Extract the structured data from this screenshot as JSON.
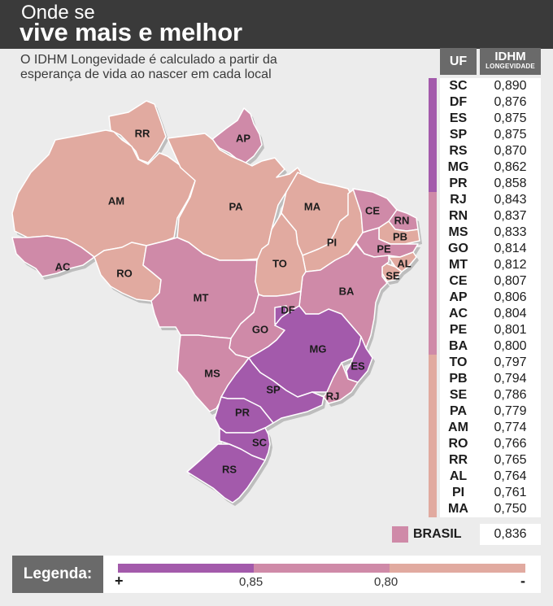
{
  "header": {
    "title_line1": "Onde se",
    "title_line2": "vive mais e melhor"
  },
  "subtitle": {
    "line1": "O IDHM Longevidade é calculado a partir da",
    "line2": "esperança de vida ao nascer em cada local"
  },
  "colors": {
    "high": "#a35aab",
    "mid": "#cf8aa8",
    "low": "#e1aaa0",
    "border": "#ffffff"
  },
  "table": {
    "header_uf": "UF",
    "header_idhm": "IDHM",
    "header_idhm_sub": "LONGEVIDADE",
    "rows": [
      {
        "uf": "SC",
        "value": "0,890",
        "tier": "high"
      },
      {
        "uf": "DF",
        "value": "0,876",
        "tier": "high"
      },
      {
        "uf": "ES",
        "value": "0,875",
        "tier": "high"
      },
      {
        "uf": "SP",
        "value": "0,875",
        "tier": "high"
      },
      {
        "uf": "RS",
        "value": "0,870",
        "tier": "high"
      },
      {
        "uf": "MG",
        "value": "0,862",
        "tier": "high"
      },
      {
        "uf": "PR",
        "value": "0,858",
        "tier": "high"
      },
      {
        "uf": "RJ",
        "value": "0,843",
        "tier": "mid"
      },
      {
        "uf": "RN",
        "value": "0,837",
        "tier": "mid"
      },
      {
        "uf": "MS",
        "value": "0,833",
        "tier": "mid"
      },
      {
        "uf": "GO",
        "value": "0,814",
        "tier": "mid"
      },
      {
        "uf": "MT",
        "value": "0,812",
        "tier": "mid"
      },
      {
        "uf": "CE",
        "value": "0,807",
        "tier": "mid"
      },
      {
        "uf": "AP",
        "value": "0,806",
        "tier": "mid"
      },
      {
        "uf": "AC",
        "value": "0,804",
        "tier": "mid"
      },
      {
        "uf": "PE",
        "value": "0,801",
        "tier": "mid"
      },
      {
        "uf": "BA",
        "value": "0,800",
        "tier": "mid"
      },
      {
        "uf": "TO",
        "value": "0,797",
        "tier": "low"
      },
      {
        "uf": "PB",
        "value": "0,794",
        "tier": "low"
      },
      {
        "uf": "SE",
        "value": "0,786",
        "tier": "low"
      },
      {
        "uf": "PA",
        "value": "0,779",
        "tier": "low"
      },
      {
        "uf": "AM",
        "value": "0,774",
        "tier": "low"
      },
      {
        "uf": "RO",
        "value": "0,766",
        "tier": "low"
      },
      {
        "uf": "RR",
        "value": "0,765",
        "tier": "low"
      },
      {
        "uf": "AL",
        "value": "0,764",
        "tier": "low"
      },
      {
        "uf": "PI",
        "value": "0,761",
        "tier": "low"
      },
      {
        "uf": "MA",
        "value": "0,750",
        "tier": "low"
      }
    ],
    "brasil_label": "BRASIL",
    "brasil_value": "0,836",
    "brasil_tier": "mid"
  },
  "legend": {
    "title": "Legenda:",
    "plus": "+",
    "minus": "-",
    "tick1": "0,85",
    "tick2": "0,80"
  },
  "map": {
    "states": [
      {
        "uf": "RR",
        "tier": "low"
      },
      {
        "uf": "AP",
        "tier": "mid"
      },
      {
        "uf": "AM",
        "tier": "low"
      },
      {
        "uf": "PA",
        "tier": "low"
      },
      {
        "uf": "AC",
        "tier": "mid"
      },
      {
        "uf": "RO",
        "tier": "low"
      },
      {
        "uf": "MT",
        "tier": "mid"
      },
      {
        "uf": "MA",
        "tier": "low"
      },
      {
        "uf": "PI",
        "tier": "low"
      },
      {
        "uf": "CE",
        "tier": "mid"
      },
      {
        "uf": "RN",
        "tier": "mid"
      },
      {
        "uf": "PB",
        "tier": "low"
      },
      {
        "uf": "PE",
        "tier": "mid"
      },
      {
        "uf": "AL",
        "tier": "low"
      },
      {
        "uf": "SE",
        "tier": "low"
      },
      {
        "uf": "BA",
        "tier": "mid"
      },
      {
        "uf": "TO",
        "tier": "low"
      },
      {
        "uf": "GO",
        "tier": "mid"
      },
      {
        "uf": "DF",
        "tier": "high"
      },
      {
        "uf": "MG",
        "tier": "high"
      },
      {
        "uf": "ES",
        "tier": "high"
      },
      {
        "uf": "RJ",
        "tier": "mid"
      },
      {
        "uf": "MS",
        "tier": "mid"
      },
      {
        "uf": "SP",
        "tier": "high"
      },
      {
        "uf": "PR",
        "tier": "high"
      },
      {
        "uf": "SC",
        "tier": "high"
      },
      {
        "uf": "RS",
        "tier": "high"
      }
    ]
  }
}
